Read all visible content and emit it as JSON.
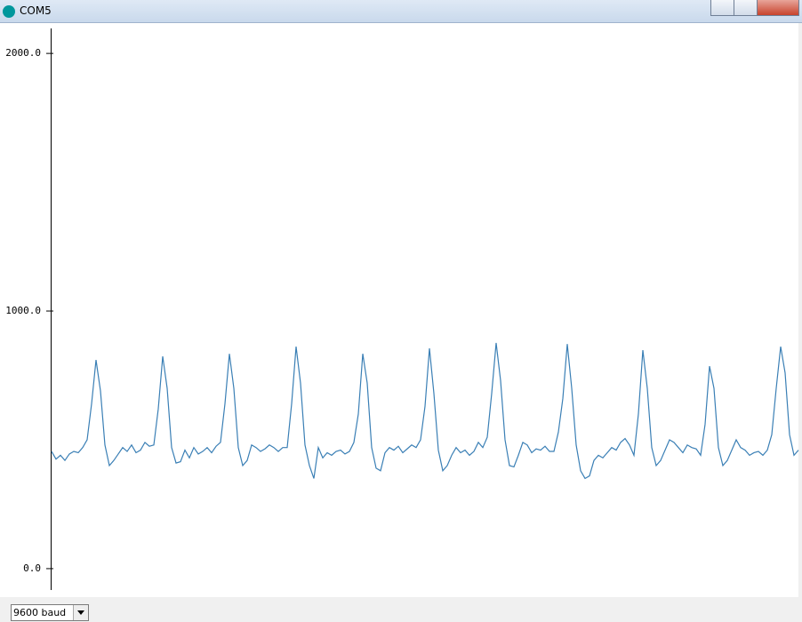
{
  "window": {
    "title": "COM5"
  },
  "baud": {
    "label": "9600 baud"
  },
  "chart_data": {
    "type": "line",
    "color": "#3a7fb5",
    "ylim": [
      -83,
      2097
    ],
    "yticks": [
      {
        "value": 0,
        "label": "0.0"
      },
      {
        "value": 1000,
        "label": "1000.0"
      },
      {
        "value": 2000,
        "label": "2000.0"
      }
    ],
    "values": [
      455,
      425,
      440,
      420,
      445,
      455,
      450,
      470,
      500,
      640,
      810,
      690,
      480,
      400,
      420,
      445,
      470,
      455,
      480,
      450,
      460,
      490,
      475,
      480,
      620,
      824,
      700,
      470,
      410,
      415,
      460,
      430,
      470,
      445,
      455,
      470,
      450,
      475,
      490,
      640,
      834,
      700,
      470,
      400,
      420,
      480,
      470,
      455,
      465,
      480,
      470,
      455,
      470,
      470,
      640,
      862,
      720,
      480,
      400,
      350,
      470,
      430,
      450,
      440,
      455,
      460,
      445,
      455,
      490,
      600,
      834,
      720,
      470,
      390,
      380,
      450,
      470,
      460,
      475,
      450,
      465,
      480,
      470,
      500,
      630,
      855,
      680,
      460,
      380,
      400,
      440,
      470,
      450,
      460,
      440,
      455,
      490,
      470,
      510,
      680,
      876,
      730,
      500,
      400,
      395,
      440,
      490,
      480,
      450,
      465,
      460,
      475,
      455,
      455,
      530,
      660,
      872,
      700,
      480,
      380,
      350,
      360,
      420,
      440,
      430,
      450,
      470,
      460,
      490,
      505,
      480,
      440,
      600,
      848,
      700,
      470,
      400,
      420,
      460,
      500,
      490,
      470,
      450,
      480,
      470,
      465,
      440,
      560,
      786,
      700,
      470,
      400,
      420,
      460,
      500,
      470,
      460,
      440,
      450,
      455,
      440,
      460,
      520,
      700,
      862,
      760,
      520,
      440,
      460
    ]
  }
}
